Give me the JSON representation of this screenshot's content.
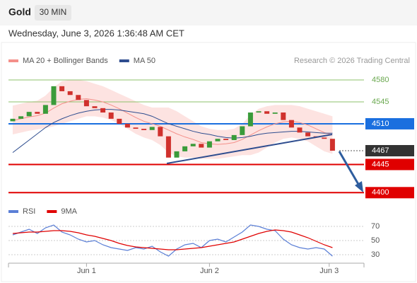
{
  "header": {
    "title": "Gold",
    "timeframe": "30 MIN",
    "datetime": "Wednesday, June 3, 2026 1:36:48 AM CET"
  },
  "chart_data": [
    {
      "type": "candlestick",
      "source": "Research © 2026 Trading Central",
      "up_color": "#3a9b3a",
      "down_color": "#d0312d",
      "open": [
        4514,
        4518,
        4522,
        4529,
        4526,
        4540,
        4570,
        4562,
        4556,
        4548,
        4538,
        4535,
        4528,
        4518,
        4510,
        4504,
        4502,
        4500,
        4505,
        4490,
        4456,
        4466,
        4474,
        4478,
        4472,
        4482,
        4486,
        4484,
        4492,
        4506,
        4528,
        4530,
        4526,
        4528,
        4516,
        4504,
        4496,
        4490,
        4488,
        4486
      ],
      "close": [
        4518,
        4522,
        4529,
        4526,
        4540,
        4570,
        4562,
        4556,
        4548,
        4538,
        4535,
        4528,
        4518,
        4510,
        4504,
        4502,
        4500,
        4505,
        4490,
        4456,
        4466,
        4474,
        4478,
        4472,
        4482,
        4486,
        4484,
        4492,
        4506,
        4528,
        4530,
        4526,
        4528,
        4516,
        4504,
        4496,
        4490,
        4488,
        4486,
        4467
      ],
      "ylim": [
        4380,
        4606
      ],
      "indicators": [
        {
          "name": "MA 20 + Bollinger Bands",
          "color": "#f4908a",
          "band_color": "#fde3e1",
          "values": [
            4515,
            4518,
            4521,
            4523,
            4527,
            4535,
            4542,
            4546,
            4549,
            4550,
            4548,
            4545,
            4540,
            4534,
            4527,
            4520,
            4514,
            4510,
            4506,
            4500,
            4494,
            4489,
            4485,
            4480,
            4478,
            4477,
            4478,
            4480,
            4485,
            4492,
            4499,
            4505,
            4510,
            4513,
            4514,
            4512,
            4508,
            4502,
            4496,
            4492
          ],
          "upper": [
            4539,
            4542,
            4545,
            4547,
            4555,
            4568,
            4578,
            4580,
            4580,
            4578,
            4574,
            4570,
            4564,
            4558,
            4552,
            4546,
            4540,
            4536,
            4536,
            4536,
            4530,
            4522,
            4514,
            4506,
            4502,
            4500,
            4500,
            4502,
            4510,
            4524,
            4534,
            4538,
            4540,
            4540,
            4540,
            4538,
            4534,
            4530,
            4526,
            4522
          ],
          "lower": [
            4493,
            4496,
            4499,
            4501,
            4503,
            4506,
            4510,
            4514,
            4518,
            4522,
            4522,
            4520,
            4516,
            4510,
            4502,
            4494,
            4488,
            4484,
            4476,
            4464,
            4458,
            4456,
            4456,
            4454,
            4454,
            4454,
            4456,
            4458,
            4460,
            4460,
            4464,
            4472,
            4480,
            4486,
            4488,
            4486,
            4482,
            4474,
            4466,
            4462
          ]
        },
        {
          "name": "MA 50",
          "color": "#2e4d8f",
          "values": [
            4464,
            4474,
            4484,
            4494,
            4504,
            4512,
            4518,
            4523,
            4527,
            4530,
            4532,
            4533,
            4533,
            4532,
            4530,
            4528,
            4526,
            4522,
            4516,
            4510,
            4506,
            4502,
            4498,
            4495,
            4493,
            4490,
            4488,
            4487,
            4488,
            4490,
            4493,
            4495,
            4496,
            4497,
            4498,
            4498,
            4497,
            4496,
            4495,
            4495
          ]
        }
      ],
      "levels": [
        {
          "value": 4580,
          "color": "#8dc26b",
          "boxed": false,
          "dotted": false
        },
        {
          "value": 4545,
          "color": "#8dc26b",
          "boxed": false,
          "dotted": false
        },
        {
          "value": 4510,
          "color": "#1a6fdf",
          "boxed": true,
          "dotted": false
        },
        {
          "value": 4467,
          "color": "#333333",
          "boxed": true,
          "dotted": true
        },
        {
          "value": 4445,
          "color": "#e00000",
          "boxed": true,
          "dotted": false
        },
        {
          "value": 4400,
          "color": "#e00000",
          "boxed": true,
          "dotted": false
        }
      ]
    },
    {
      "type": "line",
      "ylim": [
        20,
        90
      ],
      "yticks": [
        70,
        50,
        30
      ],
      "series": [
        {
          "name": "RSI",
          "color": "#5b7fd6",
          "values": [
            58,
            62,
            66,
            60,
            68,
            72,
            62,
            58,
            52,
            48,
            50,
            44,
            40,
            38,
            36,
            40,
            38,
            42,
            34,
            28,
            38,
            44,
            46,
            40,
            50,
            52,
            48,
            55,
            62,
            72,
            70,
            66,
            64,
            52,
            44,
            40,
            38,
            40,
            38,
            28
          ]
        },
        {
          "name": "9MA",
          "color": "#e00000",
          "values": [
            60,
            61,
            62,
            62,
            63,
            64,
            64,
            63,
            61,
            58,
            56,
            53,
            50,
            46,
            43,
            41,
            40,
            39,
            38,
            37,
            37,
            38,
            39,
            40,
            42,
            44,
            46,
            48,
            52,
            56,
            60,
            63,
            65,
            64,
            62,
            58,
            54,
            49,
            44,
            40
          ]
        }
      ],
      "xticks": [
        {
          "value": 9,
          "label": "Jun 1"
        },
        {
          "value": 24,
          "label": "Jun 2"
        },
        {
          "value": 38.6,
          "label": "Jun 3"
        }
      ]
    }
  ]
}
